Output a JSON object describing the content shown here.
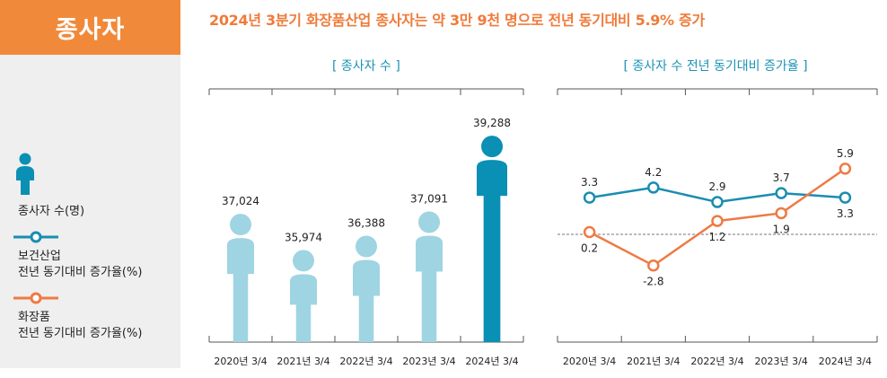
{
  "title_badge": "종사자",
  "headline": "2024년 3분기 화장품산업 종사자는 약 3만 9천 명으로 전년 동기대비 5.9% 증가",
  "legend": {
    "workers": "종사자 수(명)",
    "health_line1": "보건산업",
    "health_line2": "전년 동기대비 증가율(%)",
    "cosmetics_line1": "화장품",
    "cosmetics_line2": "전년 동기대비 증가율(%)"
  },
  "colors": {
    "light_blue": "#9fd4e2",
    "dark_blue": "#0a90b4",
    "teal_line": "#1a8db0",
    "orange_line": "#ee7a44",
    "badge": "#f08a3a"
  },
  "chart_data": [
    {
      "type": "bar",
      "title": "[ 종사자 수 ]",
      "categories": [
        "2020년 3/4",
        "2021년 3/4",
        "2022년 3/4",
        "2023년 3/4",
        "2024년 3/4"
      ],
      "values": [
        37024,
        35974,
        36388,
        37091,
        39288
      ],
      "value_labels": [
        "37,024",
        "35,974",
        "36,388",
        "37,091",
        "39,288"
      ],
      "highlight_index": 4
    },
    {
      "type": "line",
      "title": "[ 종사자 수 전년 동기대비 증가율 ]",
      "categories": [
        "2020년 3/4",
        "2021년 3/4",
        "2022년 3/4",
        "2023년 3/4",
        "2024년 3/4"
      ],
      "series": [
        {
          "name": "보건산업 전년 동기대비 증가율(%)",
          "values": [
            3.3,
            4.2,
            2.9,
            3.7,
            3.3
          ],
          "labels": [
            "3.3",
            "4.2",
            "2.9",
            "3.7",
            "3.3"
          ]
        },
        {
          "name": "화장품 전년 동기대비 증가율(%)",
          "values": [
            0.2,
            -2.8,
            1.2,
            1.9,
            5.9
          ],
          "labels": [
            "0.2",
            "-2.8",
            "1.2",
            "1.9",
            "5.9"
          ]
        }
      ],
      "ylim": [
        -4,
        8
      ]
    }
  ]
}
